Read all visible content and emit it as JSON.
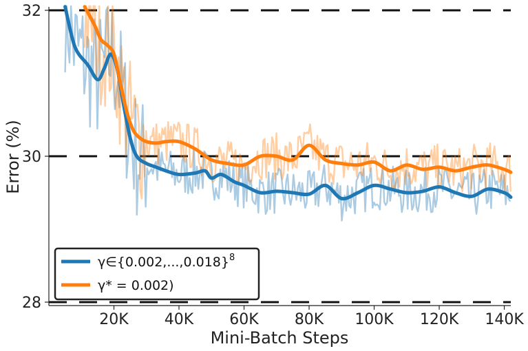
{
  "chart_data": {
    "type": "line",
    "title": "",
    "xlabel": "Mini-Batch Steps",
    "ylabel": "Error (%)",
    "xlim": [
      0,
      142000
    ],
    "ylim": [
      28,
      32
    ],
    "xticks": [
      20000,
      40000,
      60000,
      80000,
      100000,
      120000,
      140000
    ],
    "xtick_labels": [
      "20K",
      "40K",
      "60K",
      "80K",
      "100K",
      "120K",
      "140K"
    ],
    "yticks": [
      28,
      30,
      32
    ],
    "ytick_labels": [
      "28",
      "30",
      "32"
    ],
    "reference_lines": [
      28,
      30,
      32
    ],
    "grid": false,
    "legend_position": "lower-left",
    "series": [
      {
        "name": "γ∈{0.002,...,0.018}",
        "name_sup": "8",
        "color": "#1f77b4",
        "x": [
          5000,
          8000,
          12000,
          15000,
          17000,
          19000,
          21000,
          23000,
          25000,
          27000,
          30000,
          33000,
          36000,
          40000,
          45000,
          48000,
          50000,
          53000,
          57000,
          60000,
          65000,
          70000,
          75000,
          80000,
          85000,
          90000,
          95000,
          100000,
          105000,
          110000,
          115000,
          120000,
          125000,
          130000,
          135000,
          140000,
          142000
        ],
        "values": [
          32.05,
          31.5,
          31.25,
          31.05,
          31.2,
          31.4,
          31.2,
          30.7,
          30.25,
          30.0,
          29.9,
          29.85,
          29.8,
          29.75,
          29.77,
          29.8,
          29.7,
          29.75,
          29.65,
          29.6,
          29.5,
          29.52,
          29.5,
          29.48,
          29.6,
          29.42,
          29.5,
          29.6,
          29.55,
          29.5,
          29.52,
          29.58,
          29.5,
          29.45,
          29.55,
          29.5,
          29.44
        ]
      },
      {
        "name": "γ* = 0.002)",
        "name_sup": "",
        "color": "#ff7f0e",
        "x": [
          11000,
          14000,
          16000,
          18000,
          20000,
          22000,
          24000,
          26000,
          28000,
          30000,
          33000,
          36000,
          40000,
          45000,
          50000,
          55000,
          60000,
          65000,
          70000,
          75000,
          80000,
          85000,
          90000,
          95000,
          100000,
          105000,
          110000,
          115000,
          120000,
          125000,
          130000,
          135000,
          140000,
          142000
        ],
        "values": [
          32.05,
          31.8,
          31.6,
          31.52,
          31.4,
          31.0,
          30.6,
          30.35,
          30.25,
          30.2,
          30.18,
          30.2,
          30.2,
          30.1,
          29.95,
          29.9,
          29.88,
          30.0,
          30.0,
          29.95,
          30.15,
          29.95,
          29.9,
          29.88,
          29.92,
          29.8,
          29.88,
          29.82,
          29.85,
          29.8,
          29.85,
          29.88,
          29.82,
          29.78
        ]
      }
    ]
  }
}
